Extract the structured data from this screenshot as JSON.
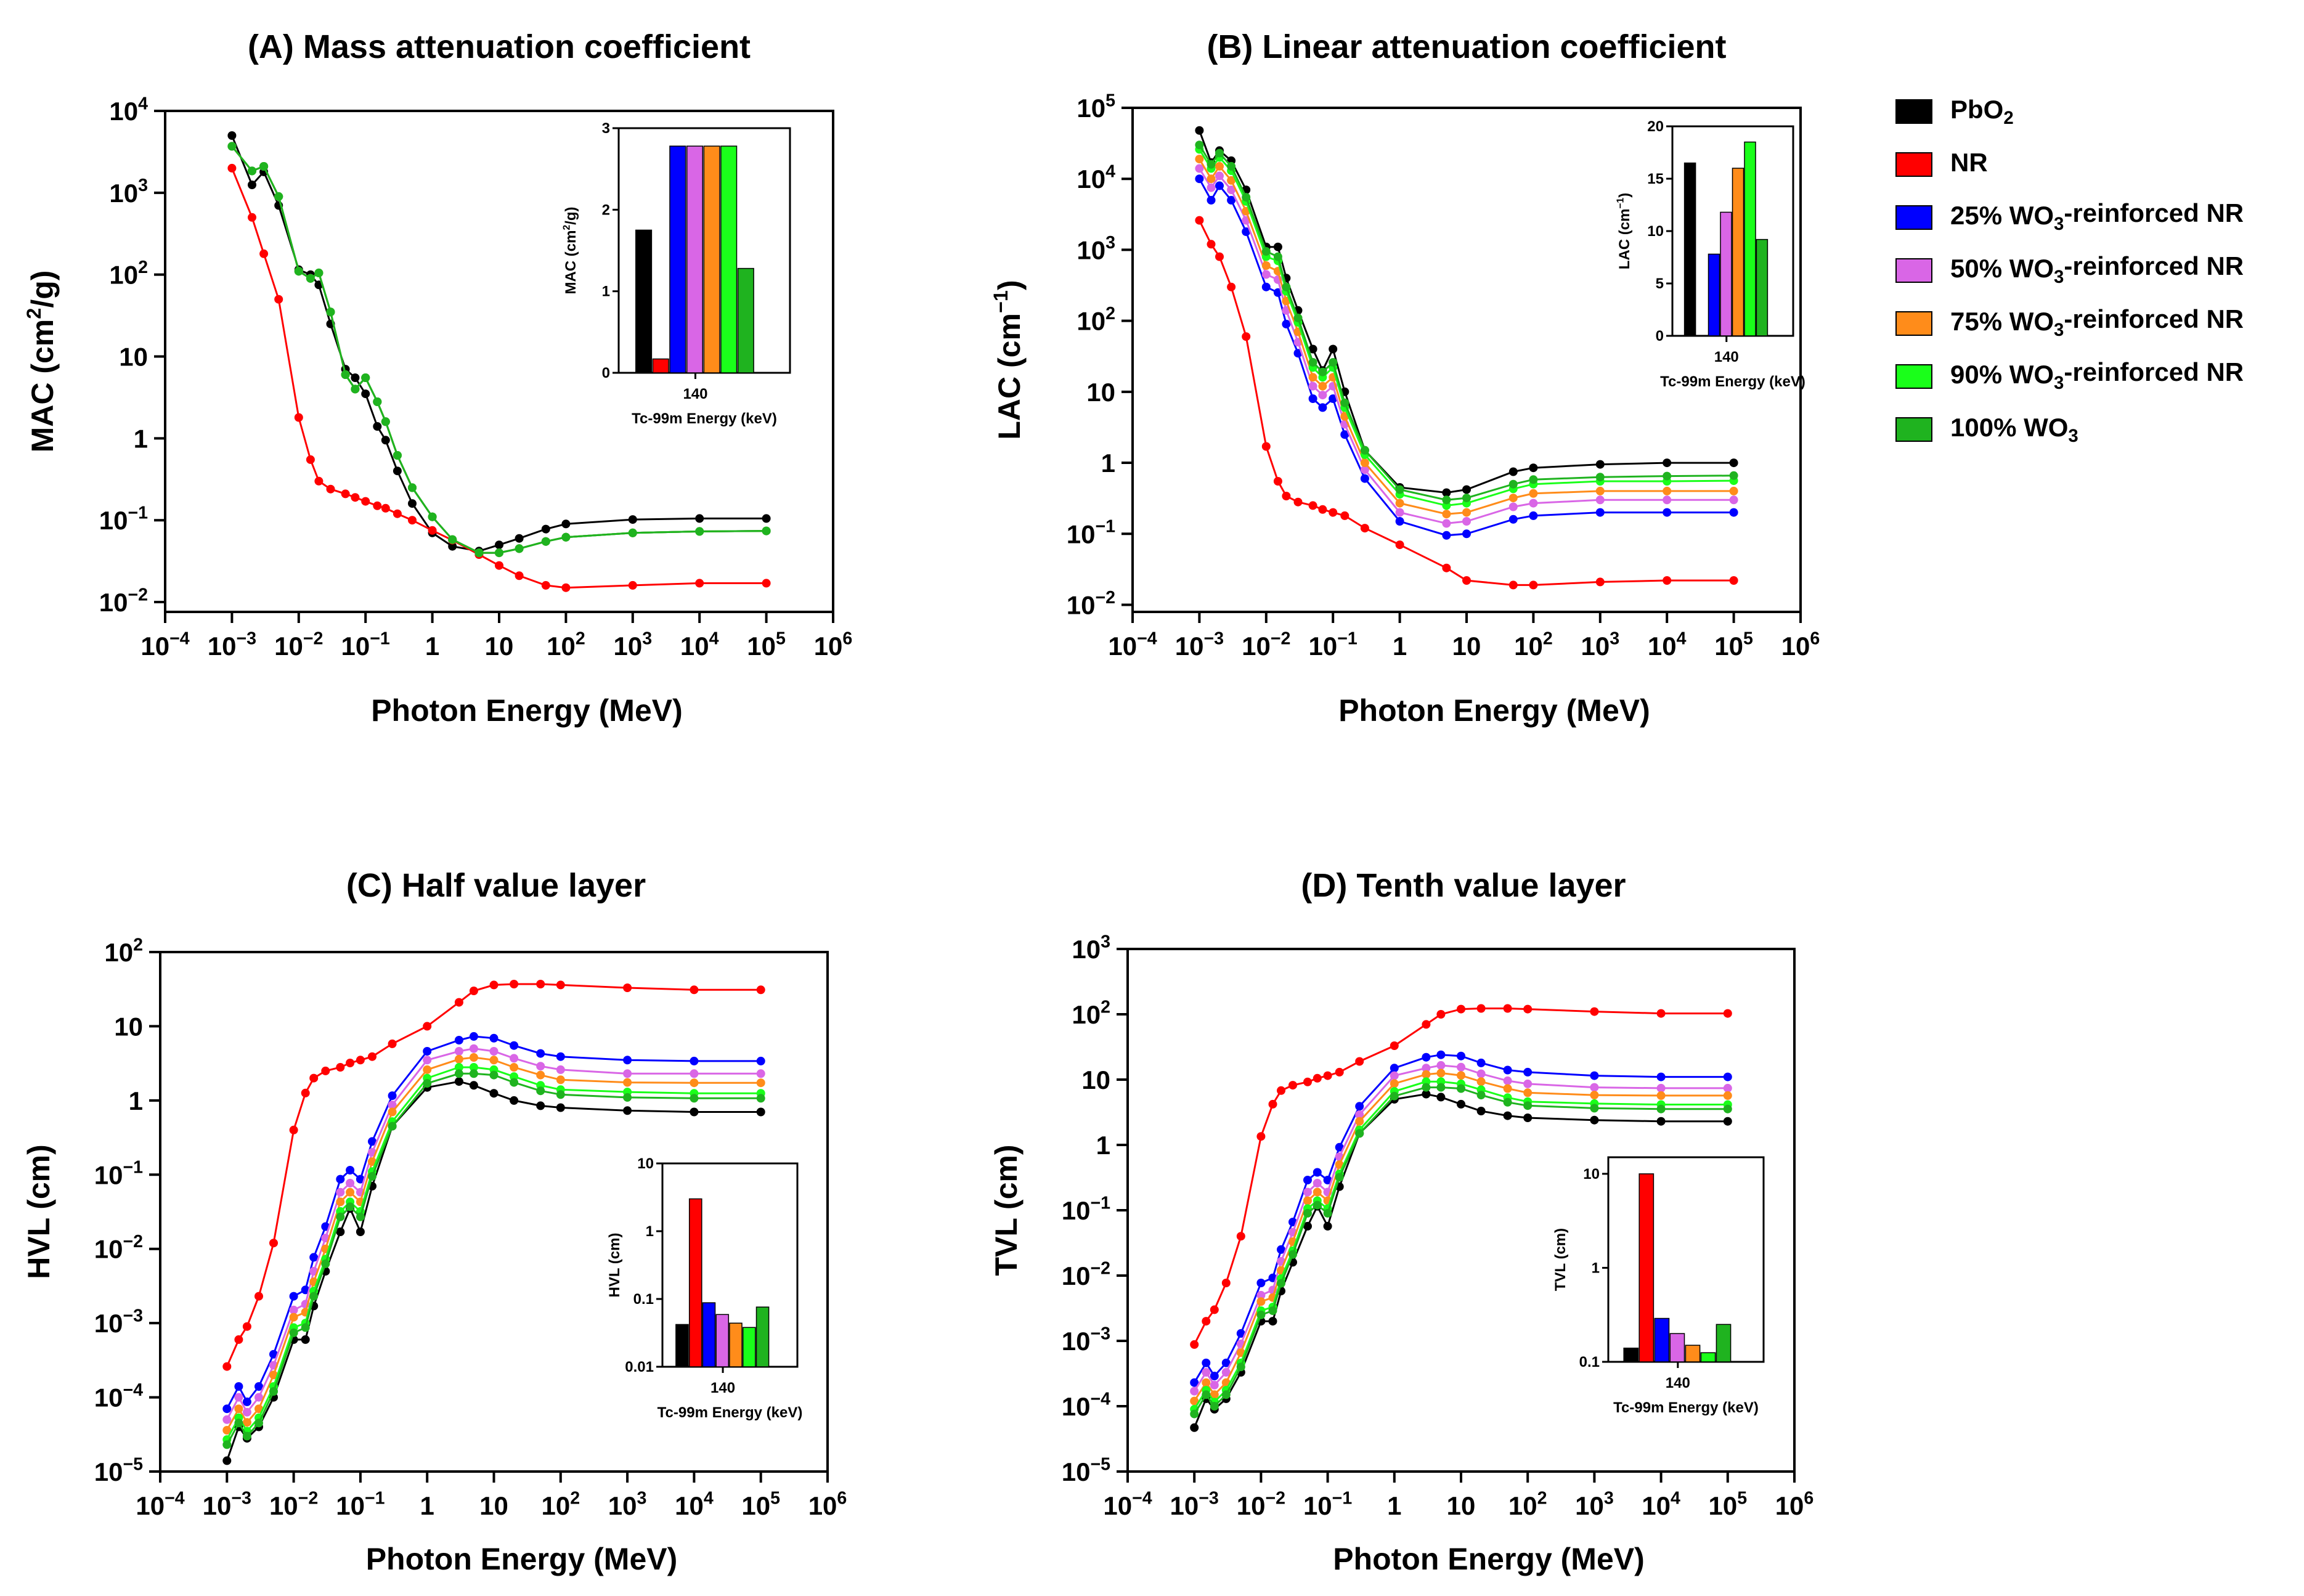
{
  "legend": [
    {
      "label": "PbO2",
      "color": "#000000"
    },
    {
      "label": "NR",
      "color": "#ff0000"
    },
    {
      "label": "25% WO3-reinforced NR",
      "color": "#0000ff"
    },
    {
      "label": "50% WO3-reinforced NR",
      "color": "#d966e6"
    },
    {
      "label": "75% WO3-reinforced NR",
      "color": "#ff8c1a"
    },
    {
      "label": "90% WO3-reinforced NR",
      "color": "#1aff1a"
    },
    {
      "label": "100% WO3",
      "color": "#1fb31f"
    }
  ],
  "chart_data": [
    {
      "type": "line",
      "title": "(A) Mass attenuation coefficient",
      "xlabel": "Photon Energy (MeV)",
      "ylabel": "MAC (cm2/g)",
      "xscale": "log",
      "yscale": "log",
      "xlim": [
        0.0001,
        1000000
      ],
      "ylim": [
        0.01,
        10000
      ],
      "x": [
        0.001,
        0.002,
        0.003,
        0.005,
        0.01,
        0.015,
        0.02,
        0.03,
        0.05,
        0.07,
        0.1,
        0.15,
        0.2,
        0.3,
        0.5,
        1,
        2,
        5,
        10,
        20,
        50,
        100,
        1000,
        10000,
        100000
      ],
      "series": [
        {
          "name": "PbO2",
          "values": [
            5000,
            1250,
            1800,
            700,
            115,
            100,
            75,
            25,
            7,
            5.5,
            3.5,
            1.4,
            0.95,
            0.4,
            0.16,
            0.07,
            0.048,
            0.042,
            0.05,
            0.06,
            0.078,
            0.09,
            0.102,
            0.105,
            0.105
          ]
        },
        {
          "name": "NR",
          "values": [
            2000,
            500,
            180,
            50,
            1.8,
            0.55,
            0.3,
            0.24,
            0.21,
            0.19,
            0.17,
            0.15,
            0.14,
            0.12,
            0.1,
            0.075,
            0.057,
            0.038,
            0.028,
            0.021,
            0.016,
            0.015,
            0.016,
            0.017,
            0.017
          ]
        },
        {
          "name": "25% WO3-reinforced NR",
          "values": [
            3700,
            1850,
            2100,
            900,
            110,
            90,
            105,
            35,
            6,
            4,
            5.5,
            2.8,
            1.6,
            0.62,
            0.25,
            0.11,
            0.058,
            0.04,
            0.04,
            0.045,
            0.055,
            0.062,
            0.07,
            0.073,
            0.074
          ]
        },
        {
          "name": "50% WO3-reinforced NR",
          "values": [
            3700,
            1850,
            2100,
            900,
            110,
            90,
            105,
            35,
            6,
            4,
            5.5,
            2.8,
            1.6,
            0.62,
            0.25,
            0.11,
            0.058,
            0.04,
            0.04,
            0.045,
            0.055,
            0.062,
            0.07,
            0.073,
            0.074
          ]
        },
        {
          "name": "75% WO3-reinforced NR",
          "values": [
            3700,
            1850,
            2100,
            900,
            110,
            90,
            105,
            35,
            6,
            4,
            5.5,
            2.8,
            1.6,
            0.62,
            0.25,
            0.11,
            0.058,
            0.04,
            0.04,
            0.045,
            0.055,
            0.062,
            0.07,
            0.073,
            0.074
          ]
        },
        {
          "name": "90% WO3-reinforced NR",
          "values": [
            3700,
            1850,
            2100,
            900,
            110,
            90,
            105,
            35,
            6,
            4,
            5.5,
            2.8,
            1.6,
            0.62,
            0.25,
            0.11,
            0.058,
            0.04,
            0.04,
            0.045,
            0.055,
            0.062,
            0.07,
            0.073,
            0.074
          ]
        },
        {
          "name": "100% WO3",
          "values": [
            3700,
            1850,
            2100,
            900,
            110,
            90,
            105,
            35,
            6,
            4,
            5.5,
            2.8,
            1.6,
            0.62,
            0.25,
            0.11,
            0.058,
            0.04,
            0.04,
            0.045,
            0.055,
            0.062,
            0.07,
            0.073,
            0.074
          ]
        }
      ],
      "inset": {
        "type": "bar",
        "yscale": "linear",
        "ylabel": "MAC (cm2/g)",
        "xlabel": "Tc-99m Energy (keV)",
        "category": "140",
        "ylim": [
          0,
          3
        ],
        "yticks": [
          0,
          1,
          2,
          3
        ],
        "yticklabels": [
          "0",
          "1",
          "2",
          "3"
        ],
        "values": [
          1.75,
          0.17,
          2.78,
          2.78,
          2.78,
          2.78,
          1.28
        ]
      }
    },
    {
      "type": "line",
      "title": "(B) Linear attenuation coefficient",
      "xlabel": "Photon Energy (MeV)",
      "ylabel": "LAC (cm-1)",
      "xscale": "log",
      "yscale": "log",
      "xlim": [
        0.0001,
        1000000
      ],
      "ylim": [
        0.01,
        100000
      ],
      "x": [
        0.001,
        0.0015,
        0.002,
        0.003,
        0.005,
        0.01,
        0.015,
        0.02,
        0.03,
        0.05,
        0.07,
        0.1,
        0.15,
        0.3,
        1,
        5,
        10,
        50,
        100,
        1000,
        10000,
        100000
      ],
      "series": [
        {
          "name": "PbO2",
          "values": [
            48000,
            17000,
            25000,
            18000,
            7000,
            1100,
            1100,
            400,
            140,
            40,
            20,
            40,
            10,
            1.5,
            0.45,
            0.38,
            0.42,
            0.75,
            0.85,
            0.95,
            1.0,
            1.0
          ]
        },
        {
          "name": "NR",
          "values": [
            2600,
            1200,
            800,
            300,
            60,
            1.7,
            0.55,
            0.34,
            0.28,
            0.25,
            0.22,
            0.2,
            0.18,
            0.12,
            0.07,
            0.033,
            0.022,
            0.019,
            0.019,
            0.021,
            0.022,
            0.022
          ]
        },
        {
          "name": "25% WO3-reinforced NR",
          "values": [
            10000,
            5000,
            8000,
            5000,
            1800,
            300,
            250,
            90,
            35,
            8,
            6,
            8,
            2.5,
            0.6,
            0.15,
            0.095,
            0.1,
            0.16,
            0.18,
            0.2,
            0.2,
            0.2
          ]
        },
        {
          "name": "50% WO3-reinforced NR",
          "values": [
            14000,
            7500,
            11000,
            7000,
            2600,
            450,
            380,
            140,
            50,
            12,
            9,
            12,
            3.5,
            0.8,
            0.2,
            0.14,
            0.15,
            0.24,
            0.27,
            0.3,
            0.3,
            0.3
          ]
        },
        {
          "name": "75% WO3-reinforced NR",
          "values": [
            19000,
            10000,
            15000,
            9500,
            3500,
            600,
            500,
            190,
            70,
            16,
            12,
            16,
            4.5,
            1.0,
            0.27,
            0.19,
            0.2,
            0.32,
            0.37,
            0.4,
            0.4,
            0.4
          ]
        },
        {
          "name": "90% WO3-reinforced NR",
          "values": [
            26000,
            14000,
            20000,
            13000,
            4800,
            800,
            700,
            260,
            95,
            22,
            16,
            22,
            6,
            1.3,
            0.36,
            0.25,
            0.27,
            0.43,
            0.5,
            0.55,
            0.55,
            0.56
          ]
        },
        {
          "name": "100% WO3",
          "values": [
            30000,
            16000,
            23000,
            15000,
            5500,
            950,
            800,
            300,
            110,
            26,
            19,
            26,
            7,
            1.5,
            0.42,
            0.3,
            0.32,
            0.5,
            0.58,
            0.63,
            0.65,
            0.66
          ]
        }
      ],
      "inset": {
        "type": "bar",
        "yscale": "linear",
        "ylabel": "LAC (cm-1)",
        "xlabel": "Tc-99m Energy (keV)",
        "category": "140",
        "ylim": [
          0,
          20
        ],
        "yticks": [
          0,
          5,
          10,
          15,
          20
        ],
        "yticklabels": [
          "0",
          "5",
          "10",
          "15",
          "20"
        ],
        "values": [
          16.5,
          0,
          7.8,
          11.8,
          16.0,
          18.5,
          9.2
        ]
      }
    },
    {
      "type": "line",
      "title": "(C) Half value layer",
      "xlabel": "Photon Energy (MeV)",
      "ylabel": "HVL (cm)",
      "xscale": "log",
      "yscale": "log",
      "xlim": [
        0.0001,
        1000000
      ],
      "ylim": [
        1e-05,
        100
      ],
      "x": [
        0.001,
        0.0015,
        0.002,
        0.003,
        0.005,
        0.01,
        0.015,
        0.02,
        0.03,
        0.05,
        0.07,
        0.1,
        0.15,
        0.3,
        1,
        3,
        5,
        10,
        20,
        50,
        100,
        1000,
        10000,
        100000
      ],
      "series": [
        {
          "name": "PbO2",
          "values": [
            1.4e-05,
            4e-05,
            2.8e-05,
            4e-05,
            0.0001,
            0.0006,
            0.0006,
            0.0017,
            0.005,
            0.017,
            0.035,
            0.017,
            0.07,
            0.45,
            1.5,
            1.8,
            1.6,
            1.25,
            1.0,
            0.85,
            0.8,
            0.73,
            0.7,
            0.7
          ]
        },
        {
          "name": "NR",
          "values": [
            0.00026,
            0.0006,
            0.0009,
            0.0023,
            0.012,
            0.4,
            1.26,
            2.0,
            2.5,
            2.8,
            3.2,
            3.5,
            3.9,
            5.8,
            10,
            21,
            30,
            36,
            37,
            37,
            36,
            33,
            31,
            31
          ]
        },
        {
          "name": "25% WO3-reinforced NR",
          "values": [
            7e-05,
            0.00014,
            8.7e-05,
            0.00014,
            0.00038,
            0.0023,
            0.0028,
            0.0077,
            0.02,
            0.087,
            0.115,
            0.087,
            0.28,
            1.16,
            4.6,
            6.5,
            7.3,
            6.9,
            5.5,
            4.3,
            3.9,
            3.5,
            3.4,
            3.4
          ]
        },
        {
          "name": "50% WO3-reinforced NR",
          "values": [
            5e-05,
            0.0001,
            6.3e-05,
            0.0001,
            0.00027,
            0.0015,
            0.0018,
            0.005,
            0.014,
            0.058,
            0.077,
            0.058,
            0.2,
            0.87,
            3.5,
            4.6,
            5.0,
            4.6,
            3.7,
            2.9,
            2.6,
            2.3,
            2.3,
            2.3
          ]
        },
        {
          "name": "75% WO3-reinforced NR",
          "values": [
            3.6e-05,
            7e-05,
            4.6e-05,
            7e-05,
            0.0002,
            0.0012,
            0.0014,
            0.0036,
            0.01,
            0.043,
            0.058,
            0.043,
            0.15,
            0.7,
            2.6,
            3.6,
            3.8,
            3.5,
            2.8,
            2.2,
            1.9,
            1.75,
            1.73,
            1.73
          ]
        },
        {
          "name": "90% WO3-reinforced NR",
          "values": [
            2.7e-05,
            5.3e-05,
            3.5e-05,
            5.3e-05,
            0.00014,
            0.00087,
            0.001,
            0.0027,
            0.0073,
            0.032,
            0.043,
            0.032,
            0.11,
            0.52,
            2.0,
            2.8,
            2.8,
            2.6,
            2.1,
            1.6,
            1.4,
            1.3,
            1.25,
            1.25
          ]
        },
        {
          "name": "100% WO3",
          "values": [
            2.3e-05,
            4.5e-05,
            3e-05,
            4.5e-05,
            0.00012,
            0.00074,
            0.00087,
            0.0023,
            0.0063,
            0.027,
            0.037,
            0.027,
            0.095,
            0.45,
            1.7,
            2.3,
            2.3,
            2.2,
            1.75,
            1.35,
            1.2,
            1.1,
            1.07,
            1.07
          ]
        }
      ],
      "inset": {
        "type": "bar",
        "yscale": "log",
        "ylabel": "HVL (cm)",
        "xlabel": "Tc-99m Energy (keV)",
        "category": "140",
        "ylim": [
          0.01,
          10
        ],
        "yticks": [
          0.01,
          0.1,
          1,
          10
        ],
        "yticklabels": [
          "0.01",
          "0.1",
          "1",
          "10"
        ],
        "values": [
          0.042,
          3.0,
          0.088,
          0.059,
          0.044,
          0.038,
          0.076
        ]
      }
    },
    {
      "type": "line",
      "title": "(D) Tenth value layer",
      "xlabel": "Photon Energy (MeV)",
      "ylabel": "TVL (cm)",
      "xscale": "log",
      "yscale": "log",
      "xlim": [
        0.0001,
        1000000
      ],
      "ylim": [
        1e-05,
        1000
      ],
      "x": [
        0.001,
        0.0015,
        0.002,
        0.003,
        0.005,
        0.01,
        0.015,
        0.02,
        0.03,
        0.05,
        0.07,
        0.1,
        0.15,
        0.3,
        1,
        3,
        5,
        10,
        20,
        50,
        100,
        1000,
        10000,
        100000
      ],
      "series": [
        {
          "name": "PbO2",
          "values": [
            4.7e-05,
            0.00013,
            9e-05,
            0.00013,
            0.00033,
            0.002,
            0.002,
            0.0058,
            0.016,
            0.057,
            0.115,
            0.057,
            0.23,
            1.5,
            5.0,
            6.0,
            5.4,
            4.2,
            3.3,
            2.8,
            2.6,
            2.4,
            2.3,
            2.3
          ]
        },
        {
          "name": "NR",
          "values": [
            0.00088,
            0.002,
            0.003,
            0.0077,
            0.04,
            1.35,
            4.2,
            6.8,
            8.2,
            9.2,
            10.5,
            11.5,
            13,
            19,
            33,
            70,
            100,
            120,
            123,
            123,
            120,
            110,
            103,
            103
          ]
        },
        {
          "name": "25% WO3-reinforced NR",
          "values": [
            0.00023,
            0.00046,
            0.00029,
            0.00046,
            0.0013,
            0.0077,
            0.0092,
            0.025,
            0.066,
            0.29,
            0.38,
            0.29,
            0.92,
            3.9,
            15,
            22,
            24,
            23,
            18,
            14,
            13,
            11.5,
            11,
            11
          ]
        },
        {
          "name": "50% WO3-reinforced NR",
          "values": [
            0.00017,
            0.00033,
            0.00021,
            0.00033,
            0.0009,
            0.005,
            0.006,
            0.0165,
            0.046,
            0.19,
            0.26,
            0.19,
            0.66,
            2.9,
            11.5,
            15,
            16.5,
            15.5,
            12.3,
            9.6,
            8.6,
            7.6,
            7.4,
            7.4
          ]
        },
        {
          "name": "75% WO3-reinforced NR",
          "values": [
            0.00012,
            0.00023,
            0.00015,
            0.00023,
            0.00066,
            0.004,
            0.0046,
            0.012,
            0.033,
            0.14,
            0.19,
            0.14,
            0.5,
            2.3,
            8.7,
            12,
            12.6,
            11.6,
            9.3,
            7.3,
            6.3,
            5.8,
            5.7,
            5.7
          ]
        },
        {
          "name": "90% WO3-reinforced NR",
          "values": [
            9e-05,
            0.000176,
            0.000116,
            0.000176,
            0.00046,
            0.0029,
            0.0033,
            0.009,
            0.024,
            0.106,
            0.14,
            0.106,
            0.36,
            1.7,
            6.6,
            9.3,
            9.3,
            8.6,
            7.0,
            5.3,
            4.6,
            4.3,
            4.15,
            4.15
          ]
        },
        {
          "name": "100% WO3",
          "values": [
            7.6e-05,
            0.00015,
            0.0001,
            0.00015,
            0.0004,
            0.0025,
            0.0029,
            0.0076,
            0.021,
            0.09,
            0.12,
            0.09,
            0.32,
            1.5,
            5.6,
            7.6,
            7.6,
            7.3,
            5.8,
            4.5,
            4.0,
            3.65,
            3.55,
            3.55
          ]
        }
      ],
      "inset": {
        "type": "bar",
        "yscale": "log",
        "ylabel": "TVL (cm)",
        "xlabel": "Tc-99m Energy (keV)",
        "category": "140",
        "ylim": [
          0.1,
          15
        ],
        "yticks": [
          0.1,
          1,
          10
        ],
        "yticklabels": [
          "0.1",
          "1",
          "10"
        ],
        "values": [
          0.14,
          10.0,
          0.29,
          0.2,
          0.15,
          0.125,
          0.25
        ]
      }
    }
  ]
}
